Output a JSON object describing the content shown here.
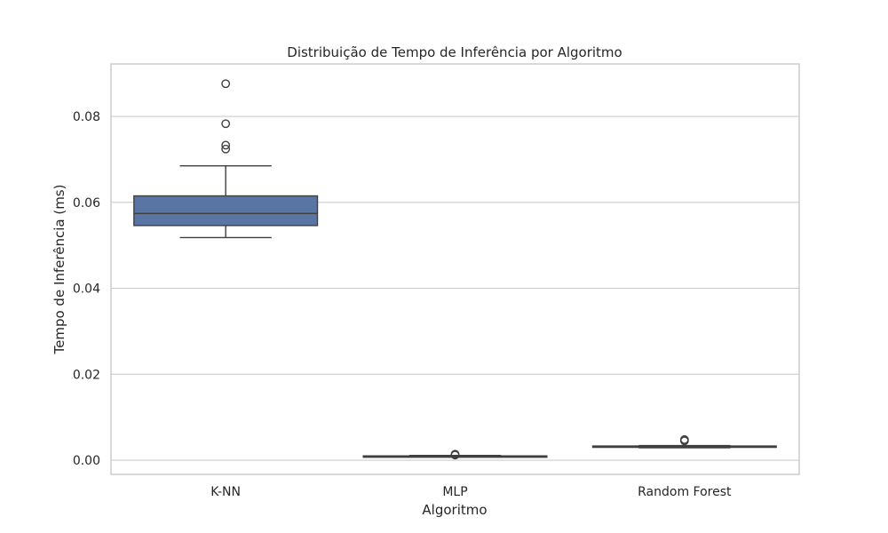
{
  "colors": {
    "box_fill": "#5975a4",
    "box_line": "#3f3f3f",
    "grid": "#cccccc",
    "text": "#262626"
  },
  "chart_data": {
    "type": "box",
    "title": "Distribuição de Tempo de Inferência por Algoritmo",
    "xlabel": "Algoritmo",
    "ylabel": "Tempo de Inferência (ms)",
    "ylim": [
      -0.0033,
      0.0922
    ],
    "yticks": [
      0.0,
      0.02,
      0.04,
      0.06,
      0.08
    ],
    "ytick_labels": [
      "0.00",
      "0.02",
      "0.04",
      "0.06",
      "0.08"
    ],
    "grid": true,
    "categories": [
      "K-NN",
      "MLP",
      "Random Forest"
    ],
    "boxes": [
      {
        "category": "K-NN",
        "whisker_low": 0.0518,
        "q1": 0.0546,
        "median": 0.0574,
        "q3": 0.0615,
        "whisker_high": 0.0685,
        "outliers": [
          0.0724,
          0.0733,
          0.0783,
          0.0876
        ]
      },
      {
        "category": "MLP",
        "whisker_low": 0.0009,
        "q1": 0.0009,
        "median": 0.001,
        "q3": 0.001,
        "whisker_high": 0.0011,
        "outliers": [
          0.0012,
          0.0014
        ]
      },
      {
        "category": "Random Forest",
        "whisker_low": 0.0029,
        "q1": 0.003,
        "median": 0.0032,
        "q3": 0.0033,
        "whisker_high": 0.0034,
        "outliers": [
          0.0045,
          0.0048
        ]
      }
    ]
  }
}
